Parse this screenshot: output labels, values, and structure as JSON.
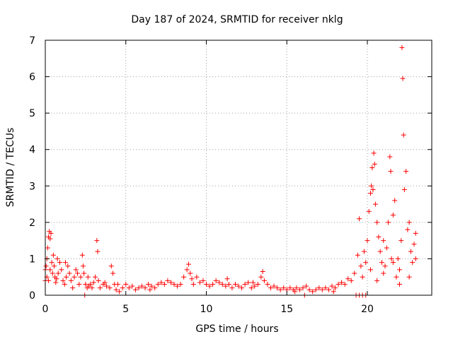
{
  "chart_data": {
    "type": "scatter",
    "title": "Day 187 of 2024, SRMTID for receiver nklg",
    "xlabel": "GPS time / hours",
    "ylabel": "SRMTID / TECUs",
    "xlim": [
      0,
      24
    ],
    "ylim": [
      0,
      7
    ],
    "xticks": [
      0,
      5,
      10,
      15,
      20
    ],
    "yticks": [
      0,
      1,
      2,
      3,
      4,
      5,
      6,
      7
    ],
    "grid": true,
    "marker": "+",
    "series": [
      {
        "name": "SRMTID",
        "color": "#ff0000",
        "points": [
          [
            0.05,
            0.8
          ],
          [
            0.1,
            1.0
          ],
          [
            0.15,
            1.3
          ],
          [
            0.2,
            1.6
          ],
          [
            0.25,
            1.75
          ],
          [
            0.3,
            1.55
          ],
          [
            0.35,
            1.7
          ],
          [
            0.4,
            0.9
          ],
          [
            0.45,
            0.6
          ],
          [
            0.5,
            1.1
          ],
          [
            0.1,
            0.5
          ],
          [
            0.2,
            0.4
          ],
          [
            0.3,
            0.7
          ],
          [
            0.55,
            0.8
          ],
          [
            0.6,
            0.5
          ],
          [
            0.65,
            0.35
          ],
          [
            0.7,
            0.45
          ],
          [
            0.8,
            0.6
          ],
          [
            0.9,
            0.9
          ],
          [
            1.0,
            0.7
          ],
          [
            1.1,
            0.4
          ],
          [
            1.2,
            0.3
          ],
          [
            1.3,
            0.5
          ],
          [
            1.4,
            0.8
          ],
          [
            1.5,
            0.6
          ],
          [
            1.6,
            0.4
          ],
          [
            1.7,
            0.2
          ],
          [
            1.8,
            0.5
          ],
          [
            1.9,
            0.7
          ],
          [
            2.0,
            0.6
          ],
          [
            2.1,
            0.3
          ],
          [
            2.2,
            0.5
          ],
          [
            2.3,
            1.1
          ],
          [
            2.35,
            0.8
          ],
          [
            2.4,
            0.6
          ],
          [
            2.45,
            0.0
          ],
          [
            2.5,
            0.3
          ],
          [
            2.6,
            0.2
          ],
          [
            2.7,
            0.25
          ],
          [
            2.8,
            0.3
          ],
          [
            2.9,
            0.2
          ],
          [
            3.0,
            0.35
          ],
          [
            3.1,
            0.5
          ],
          [
            3.2,
            1.5
          ],
          [
            3.25,
            1.2
          ],
          [
            3.3,
            0.4
          ],
          [
            3.4,
            0.2
          ],
          [
            3.6,
            0.3
          ],
          [
            3.8,
            0.25
          ],
          [
            4.0,
            0.2
          ],
          [
            4.1,
            0.8
          ],
          [
            4.2,
            0.6
          ],
          [
            4.3,
            0.3
          ],
          [
            4.4,
            0.15
          ],
          [
            4.6,
            0.1
          ],
          [
            4.8,
            0.2
          ],
          [
            5.0,
            0.3
          ],
          [
            5.2,
            0.2
          ],
          [
            5.4,
            0.25
          ],
          [
            5.6,
            0.15
          ],
          [
            5.8,
            0.2
          ],
          [
            6.0,
            0.25
          ],
          [
            6.2,
            0.2
          ],
          [
            6.4,
            0.3
          ],
          [
            6.6,
            0.25
          ],
          [
            6.8,
            0.2
          ],
          [
            7.0,
            0.3
          ],
          [
            7.2,
            0.35
          ],
          [
            7.4,
            0.3
          ],
          [
            7.6,
            0.4
          ],
          [
            7.8,
            0.35
          ],
          [
            8.0,
            0.3
          ],
          [
            8.2,
            0.25
          ],
          [
            8.4,
            0.3
          ],
          [
            8.6,
            0.5
          ],
          [
            8.8,
            0.7
          ],
          [
            8.9,
            0.85
          ],
          [
            9.0,
            0.6
          ],
          [
            9.2,
            0.3
          ],
          [
            9.4,
            0.5
          ],
          [
            9.6,
            0.35
          ],
          [
            9.8,
            0.4
          ],
          [
            10.0,
            0.3
          ],
          [
            10.2,
            0.25
          ],
          [
            10.4,
            0.3
          ],
          [
            10.6,
            0.4
          ],
          [
            10.8,
            0.35
          ],
          [
            11.0,
            0.3
          ],
          [
            11.2,
            0.25
          ],
          [
            11.4,
            0.3
          ],
          [
            11.6,
            0.2
          ],
          [
            11.8,
            0.3
          ],
          [
            12.0,
            0.25
          ],
          [
            12.2,
            0.2
          ],
          [
            12.4,
            0.3
          ],
          [
            12.6,
            0.35
          ],
          [
            12.8,
            0.2
          ],
          [
            13.0,
            0.25
          ],
          [
            13.2,
            0.3
          ],
          [
            13.4,
            0.5
          ],
          [
            13.5,
            0.65
          ],
          [
            13.6,
            0.4
          ],
          [
            13.8,
            0.3
          ],
          [
            14.0,
            0.2
          ],
          [
            14.2,
            0.25
          ],
          [
            14.4,
            0.2
          ],
          [
            14.6,
            0.15
          ],
          [
            14.8,
            0.2
          ],
          [
            15.0,
            0.15
          ],
          [
            15.2,
            0.2
          ],
          [
            15.4,
            0.15
          ],
          [
            15.6,
            0.2
          ],
          [
            15.8,
            0.15
          ],
          [
            16.0,
            0.2
          ],
          [
            16.2,
            0.25
          ],
          [
            16.4,
            0.15
          ],
          [
            16.6,
            0.1
          ],
          [
            16.8,
            0.15
          ],
          [
            17.0,
            0.2
          ],
          [
            17.2,
            0.15
          ],
          [
            17.4,
            0.2
          ],
          [
            17.6,
            0.15
          ],
          [
            17.8,
            0.25
          ],
          [
            17.9,
            0.1
          ],
          [
            18.0,
            0.2
          ],
          [
            18.2,
            0.3
          ],
          [
            18.4,
            0.35
          ],
          [
            18.6,
            0.3
          ],
          [
            18.8,
            0.45
          ],
          [
            19.0,
            0.4
          ],
          [
            19.2,
            0.6
          ],
          [
            19.4,
            1.1
          ],
          [
            19.5,
            2.1
          ],
          [
            19.6,
            0.8
          ],
          [
            19.7,
            0.5
          ],
          [
            19.8,
            1.2
          ],
          [
            19.9,
            0.9
          ],
          [
            20.0,
            1.5
          ],
          [
            20.1,
            2.3
          ],
          [
            20.2,
            2.8
          ],
          [
            20.25,
            3.0
          ],
          [
            20.3,
            3.5
          ],
          [
            20.35,
            2.9
          ],
          [
            20.4,
            3.9
          ],
          [
            20.45,
            3.6
          ],
          [
            20.5,
            2.5
          ],
          [
            20.6,
            2.0
          ],
          [
            20.7,
            1.6
          ],
          [
            20.8,
            1.2
          ],
          [
            20.9,
            0.9
          ],
          [
            21.0,
            0.6
          ],
          [
            21.1,
            0.8
          ],
          [
            21.2,
            1.3
          ],
          [
            21.3,
            2.0
          ],
          [
            21.4,
            3.8
          ],
          [
            21.45,
            3.4
          ],
          [
            21.5,
            1.0
          ],
          [
            21.6,
            2.2
          ],
          [
            21.7,
            2.6
          ],
          [
            21.8,
            0.5
          ],
          [
            21.9,
            1.0
          ],
          [
            22.0,
            0.7
          ],
          [
            22.1,
            1.5
          ],
          [
            22.15,
            6.8
          ],
          [
            22.2,
            5.95
          ],
          [
            22.25,
            4.4
          ],
          [
            22.3,
            2.9
          ],
          [
            22.4,
            3.4
          ],
          [
            22.5,
            1.8
          ],
          [
            22.6,
            2.0
          ],
          [
            22.7,
            1.2
          ],
          [
            22.8,
            0.9
          ],
          [
            22.9,
            1.4
          ],
          [
            23.0,
            1.7
          ],
          [
            20.2,
            0.7
          ],
          [
            20.6,
            0.4
          ],
          [
            21.0,
            1.5
          ],
          [
            21.6,
            0.9
          ],
          [
            22.0,
            0.3
          ],
          [
            22.6,
            0.5
          ],
          [
            0.75,
            1.0
          ],
          [
            1.25,
            0.9
          ],
          [
            2.65,
            0.5
          ],
          [
            3.7,
            0.35
          ],
          [
            4.5,
            0.3
          ],
          [
            6.5,
            0.15
          ],
          [
            9.1,
            0.45
          ],
          [
            11.3,
            0.45
          ],
          [
            12.9,
            0.35
          ],
          [
            15.5,
            0.1
          ],
          [
            16.1,
            0.0
          ],
          [
            19.3,
            0.0
          ],
          [
            19.5,
            0.0
          ],
          [
            19.7,
            0.0
          ],
          [
            19.9,
            0.0
          ],
          [
            0.0,
            0.4
          ],
          [
            0.0,
            0.7
          ],
          [
            23.0,
            1.0
          ]
        ]
      }
    ]
  }
}
